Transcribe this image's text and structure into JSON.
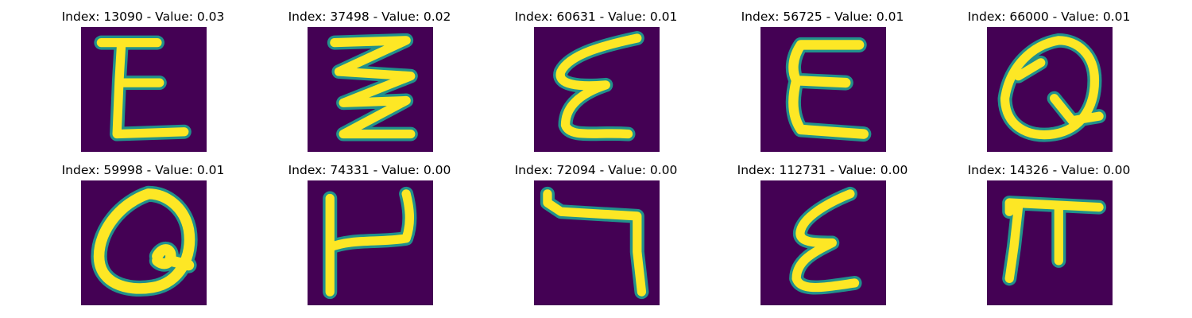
{
  "colors": {
    "background": "#440154",
    "stroke_edge": "#21918c",
    "stroke_core": "#fde725"
  },
  "panels": [
    {
      "title": "Index: 13090 - Value: 0.03",
      "glyph": "E-like handwritten character"
    },
    {
      "title": "Index: 37498 - Value: 0.02",
      "glyph": "zigzag handwritten character"
    },
    {
      "title": "Index: 60631 - Value: 0.01",
      "glyph": "epsilon-like handwritten character"
    },
    {
      "title": "Index: 56725 - Value: 0.01",
      "glyph": "E-like handwritten character"
    },
    {
      "title": "Index: 66000 - Value: 0.01",
      "glyph": "Q-like handwritten character"
    },
    {
      "title": "Index: 59998 - Value: 0.01",
      "glyph": "Q-like handwritten character"
    },
    {
      "title": "Index: 74331 - Value: 0.00",
      "glyph": "H-like handwritten character"
    },
    {
      "title": "Index: 72094 - Value: 0.00",
      "glyph": "7-like handwritten character"
    },
    {
      "title": "Index: 112731 - Value: 0.00",
      "glyph": "epsilon-like handwritten character"
    },
    {
      "title": "Index: 14326 - Value: 0.00",
      "glyph": "pi-like handwritten character"
    }
  ]
}
